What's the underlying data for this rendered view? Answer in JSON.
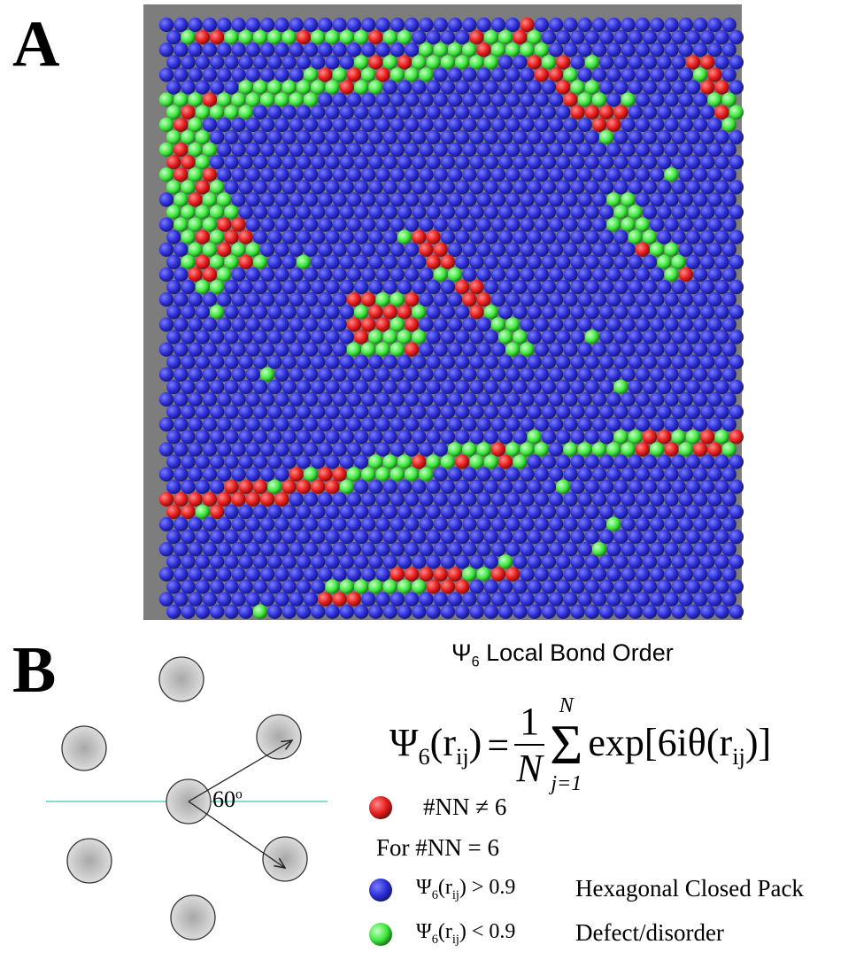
{
  "panels": {
    "a": {
      "label": "A"
    },
    "b": {
      "label": "B",
      "angle_label": [
        {
          "text": "60"
        },
        {
          "text": "o",
          "sup": true
        }
      ]
    }
  },
  "legend": {
    "title": [
      {
        "text": "Ψ"
      },
      {
        "text": "6",
        "sub": true
      },
      {
        "text": " Local Bond Order"
      }
    ],
    "formula": {
      "lhs": [
        {
          "text": "Ψ"
        },
        {
          "text": "6",
          "sub": true
        },
        {
          "text": "(r"
        },
        {
          "text": "ij",
          "sub": true
        },
        {
          "text": ")"
        }
      ],
      "equals": "=",
      "numerator": "1",
      "denominator": "N",
      "sum_symbol": "Σ",
      "sum_upper": "N",
      "sum_lower": "j=1",
      "rhs": [
        {
          "text": "exp[6iθ(r"
        },
        {
          "text": "ij",
          "sub": true
        },
        {
          "text": ")]"
        }
      ]
    },
    "items": [
      {
        "color": "#ee1111",
        "condition": [
          {
            "text": "#NN ≠ 6"
          }
        ]
      },
      {
        "condition": [
          {
            "text": "For #NN = 6"
          }
        ]
      },
      {
        "color": "#2a2ad0",
        "condition": [
          {
            "text": "Ψ"
          },
          {
            "text": "6",
            "sub": true
          },
          {
            "text": "(r"
          },
          {
            "text": "ij",
            "sub": true
          },
          {
            "text": ") > 0.9"
          }
        ],
        "description": "Hexagonal Closed Pack"
      },
      {
        "color": "#33ee33",
        "condition": [
          {
            "text": "Ψ"
          },
          {
            "text": "6",
            "sub": true
          },
          {
            "text": "(r"
          },
          {
            "text": "ij",
            "sub": true
          },
          {
            "text": ") < 0.9"
          }
        ],
        "description": "Defect/disorder"
      }
    ]
  }
}
